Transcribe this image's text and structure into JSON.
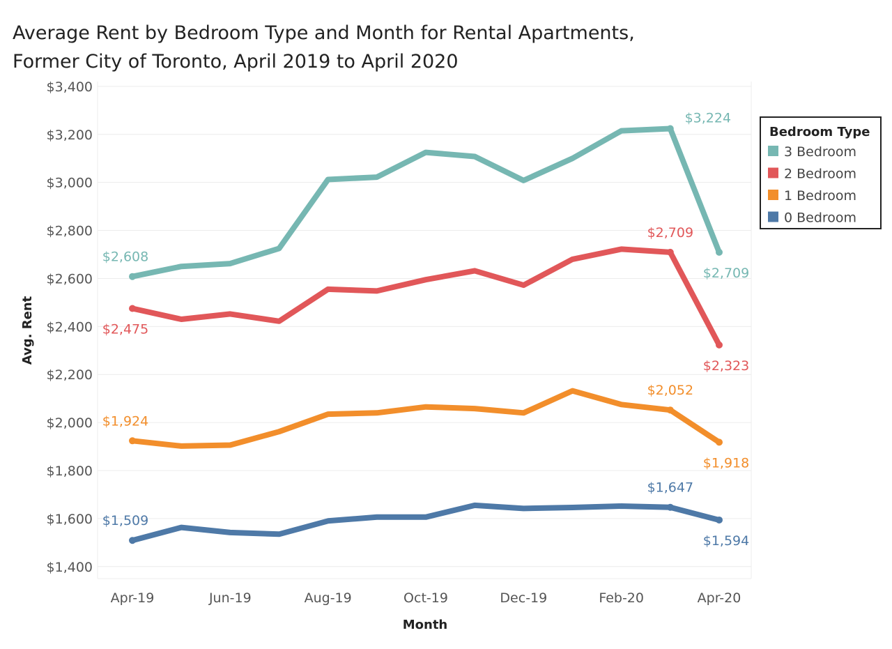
{
  "chart_data": {
    "type": "line",
    "title_lines": [
      "Average Rent by Bedroom Type and Month for Rental Apartments,",
      "Former City of Toronto, April 2019 to April 2020"
    ],
    "xlabel": "Month",
    "ylabel": "Avg. Rent",
    "ylim": [
      1350,
      3420
    ],
    "y_ticks": [
      1400,
      1600,
      1800,
      2000,
      2200,
      2400,
      2600,
      2800,
      3000,
      3200,
      3400
    ],
    "y_tick_labels": [
      "$1,400",
      "$1,600",
      "$1,800",
      "$2,000",
      "$2,200",
      "$2,400",
      "$2,600",
      "$2,800",
      "$3,000",
      "$3,200",
      "$3,400"
    ],
    "x": [
      "Apr-19",
      "May-19",
      "Jun-19",
      "Jul-19",
      "Aug-19",
      "Sep-19",
      "Oct-19",
      "Nov-19",
      "Dec-19",
      "Jan-20",
      "Feb-20",
      "Mar-20",
      "Apr-20"
    ],
    "x_tick_labels": [
      "Apr-19",
      "",
      "Jun-19",
      "",
      "Aug-19",
      "",
      "Oct-19",
      "",
      "Dec-19",
      "",
      "Feb-20",
      "",
      "Apr-20"
    ],
    "grid": "horizontal",
    "legend": {
      "title": "Bedroom Type",
      "placement": "right",
      "entries": [
        "3 Bedroom",
        "2 Bedroom",
        "1 Bedroom",
        "0 Bedroom"
      ]
    },
    "series": [
      {
        "name": "3 Bedroom",
        "color": "#76b7b2",
        "values": [
          2608,
          2650,
          2662,
          2725,
          3012,
          3022,
          3125,
          3108,
          3008,
          3100,
          3215,
          3224,
          2709
        ],
        "labels": [
          {
            "index": 0,
            "text": "$2,608",
            "position": "above"
          },
          {
            "index": 11,
            "text": "$3,224",
            "position": "above-right"
          },
          {
            "index": 12,
            "text": "$2,709",
            "position": "below"
          }
        ]
      },
      {
        "name": "2 Bedroom",
        "color": "#e15759",
        "values": [
          2475,
          2430,
          2452,
          2422,
          2555,
          2548,
          2595,
          2632,
          2572,
          2680,
          2722,
          2709,
          2323
        ],
        "labels": [
          {
            "index": 0,
            "text": "$2,475",
            "position": "below"
          },
          {
            "index": 11,
            "text": "$2,709",
            "position": "above"
          },
          {
            "index": 12,
            "text": "$2,323",
            "position": "below"
          }
        ]
      },
      {
        "name": "1 Bedroom",
        "color": "#f28e2b",
        "values": [
          1924,
          1902,
          1906,
          1962,
          2035,
          2040,
          2065,
          2058,
          2040,
          2132,
          2075,
          2052,
          1918
        ],
        "labels": [
          {
            "index": 0,
            "text": "$1,924",
            "position": "above"
          },
          {
            "index": 11,
            "text": "$2,052",
            "position": "above"
          },
          {
            "index": 12,
            "text": "$1,918",
            "position": "below"
          }
        ]
      },
      {
        "name": "0 Bedroom",
        "color": "#4e79a7",
        "values": [
          1509,
          1563,
          1542,
          1535,
          1590,
          1606,
          1606,
          1655,
          1642,
          1646,
          1652,
          1647,
          1594
        ],
        "labels": [
          {
            "index": 0,
            "text": "$1,509",
            "position": "above"
          },
          {
            "index": 11,
            "text": "$1,647",
            "position": "above"
          },
          {
            "index": 12,
            "text": "$1,594",
            "position": "below"
          }
        ]
      }
    ]
  }
}
